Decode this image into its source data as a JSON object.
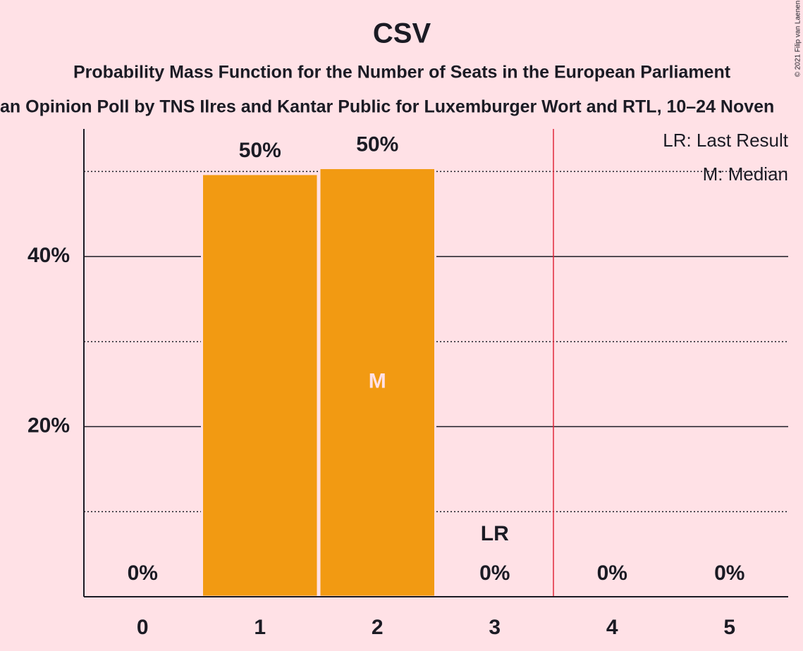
{
  "chart_data": {
    "type": "bar",
    "title": "CSV",
    "subtitle": "Probability Mass Function for the Number of Seats in the European Parliament",
    "caption": "an Opinion Poll by TNS Ilres and Kantar Public for Luxemburger Wort and RTL, 10–24 Noven",
    "copyright": "© 2021 Filip van Laenen",
    "categories": [
      "0",
      "1",
      "2",
      "3",
      "4",
      "5"
    ],
    "values": [
      0,
      49.7,
      50.4,
      0,
      0,
      0
    ],
    "value_labels": [
      "0%",
      "50%",
      "50%",
      "0%",
      "0%",
      "0%"
    ],
    "color": "#f29a12",
    "ylim": [
      0,
      55
    ],
    "yticks": [
      {
        "value": 20,
        "label": "20%"
      },
      {
        "value": 40,
        "label": "40%"
      }
    ],
    "minor_yticks": [
      10,
      30,
      50
    ],
    "grid": true,
    "median_category": 2,
    "median_label": "M",
    "last_result_category": 3,
    "last_result_label": "LR",
    "last_result_line_x": 3.5,
    "last_result_line_color": "#e0273a",
    "legend": [
      "LR: Last Result",
      "M: Median"
    ],
    "legend_position": "top-right"
  }
}
